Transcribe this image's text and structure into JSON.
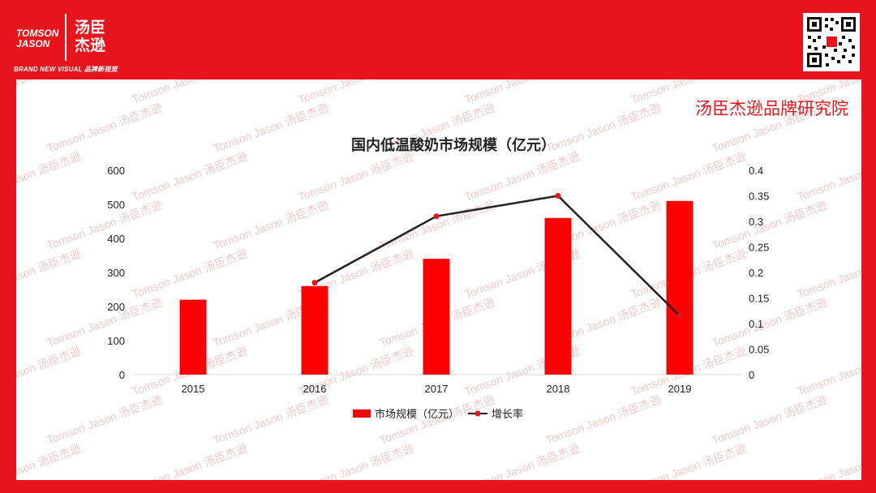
{
  "header": {
    "logo_en_line1": "TOMSON",
    "logo_en_line2": "JASON",
    "logo_cn_line1": "汤臣",
    "logo_cn_line2": "杰逊",
    "tagline": "BRAND NEW VISUAL 品牌新视觉",
    "brand_accent": "#e8141b"
  },
  "brand_label": "汤臣杰逊品牌研究院",
  "watermark_text": "Tomson Jason 汤臣杰逊",
  "chart_data": {
    "type": "bar",
    "title": "国内低温酸奶市场规模（亿元）",
    "categories": [
      "2015",
      "2016",
      "2017",
      "2018",
      "2019"
    ],
    "series": [
      {
        "name": "市场规模（亿元）",
        "type": "bar",
        "axis": "left",
        "color": "#ff0000",
        "values": [
          220,
          260,
          340,
          460,
          510
        ]
      },
      {
        "name": "增长率",
        "type": "line",
        "axis": "right",
        "color": "#222222",
        "marker_color": "#e8141b",
        "values": [
          null,
          0.18,
          0.31,
          0.35,
          0.115
        ]
      }
    ],
    "y_left": {
      "min": 0,
      "max": 600,
      "step": 100,
      "ticks": [
        "0",
        "100",
        "200",
        "300",
        "400",
        "500",
        "600"
      ]
    },
    "y_right": {
      "min": 0,
      "max": 0.4,
      "step": 0.05,
      "ticks": [
        "0",
        "0.05",
        "0.1",
        "0.15",
        "0.2",
        "0.25",
        "0.3",
        "0.35",
        "0.4"
      ]
    },
    "grid": false,
    "legend": "bottom"
  }
}
